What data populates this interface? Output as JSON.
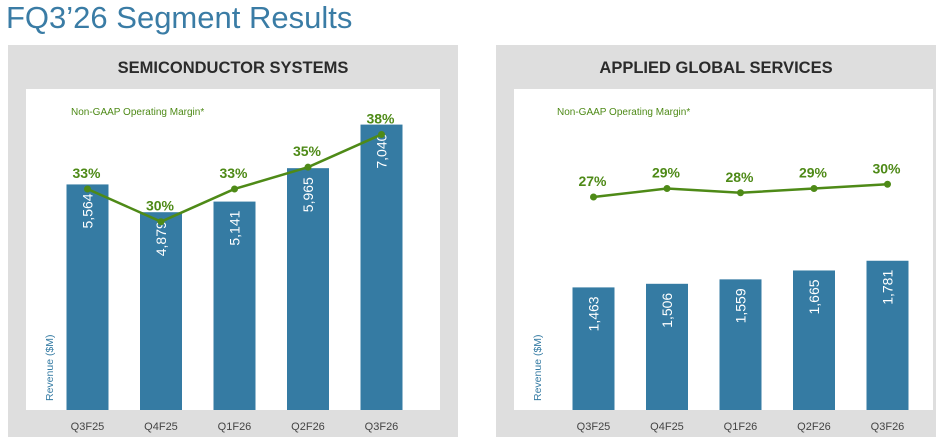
{
  "page": {
    "title": "FQ3’26 Segment Results"
  },
  "colors": {
    "bar": "#357ba3",
    "margin_line": "#4e8a17",
    "title": "#3a7ca5",
    "panel_bg": "#dedede"
  },
  "chart_data": [
    {
      "type": "bar",
      "title": "SEMICONDUCTOR SYSTEMS",
      "ylabel": "Revenue ($M)",
      "categories": [
        "Q3F25",
        "Q4F25",
        "Q1F26",
        "Q2F26",
        "Q3F26"
      ],
      "value_labels": [
        "5,564",
        "4,879",
        "5,141",
        "5,965",
        "7,040"
      ],
      "series": [
        {
          "type": "bar",
          "values": [
            5564,
            4879,
            5141,
            5965,
            7040
          ]
        },
        {
          "type": "line",
          "name": "Non-GAAP Operating Margin*",
          "values": [
            33,
            30,
            33,
            35,
            38
          ],
          "labels": [
            "33%",
            "30%",
            "33%",
            "35%",
            "38%"
          ]
        }
      ],
      "ylim": [
        0,
        7400
      ],
      "margin_range": [
        12,
        38.5
      ],
      "grid": false
    },
    {
      "type": "bar",
      "title": "APPLIED GLOBAL SERVICES",
      "ylabel": "Revenue ($M)",
      "categories": [
        "Q3F25",
        "Q4F25",
        "Q1F26",
        "Q2F26",
        "Q3F26"
      ],
      "value_labels": [
        "1,463",
        "1,506",
        "1,559",
        "1,665",
        "1,781"
      ],
      "series": [
        {
          "type": "bar",
          "values": [
            1463,
            1506,
            1559,
            1665,
            1781
          ]
        },
        {
          "type": "line",
          "name": "Non-GAAP Operating Margin*",
          "values": [
            27,
            29,
            28,
            29,
            30
          ],
          "labels": [
            "27%",
            "29%",
            "28%",
            "29%",
            "30%"
          ]
        }
      ],
      "ylim": [
        0,
        3580
      ],
      "margin_range": [
        -25,
        43
      ],
      "grid": false
    }
  ]
}
